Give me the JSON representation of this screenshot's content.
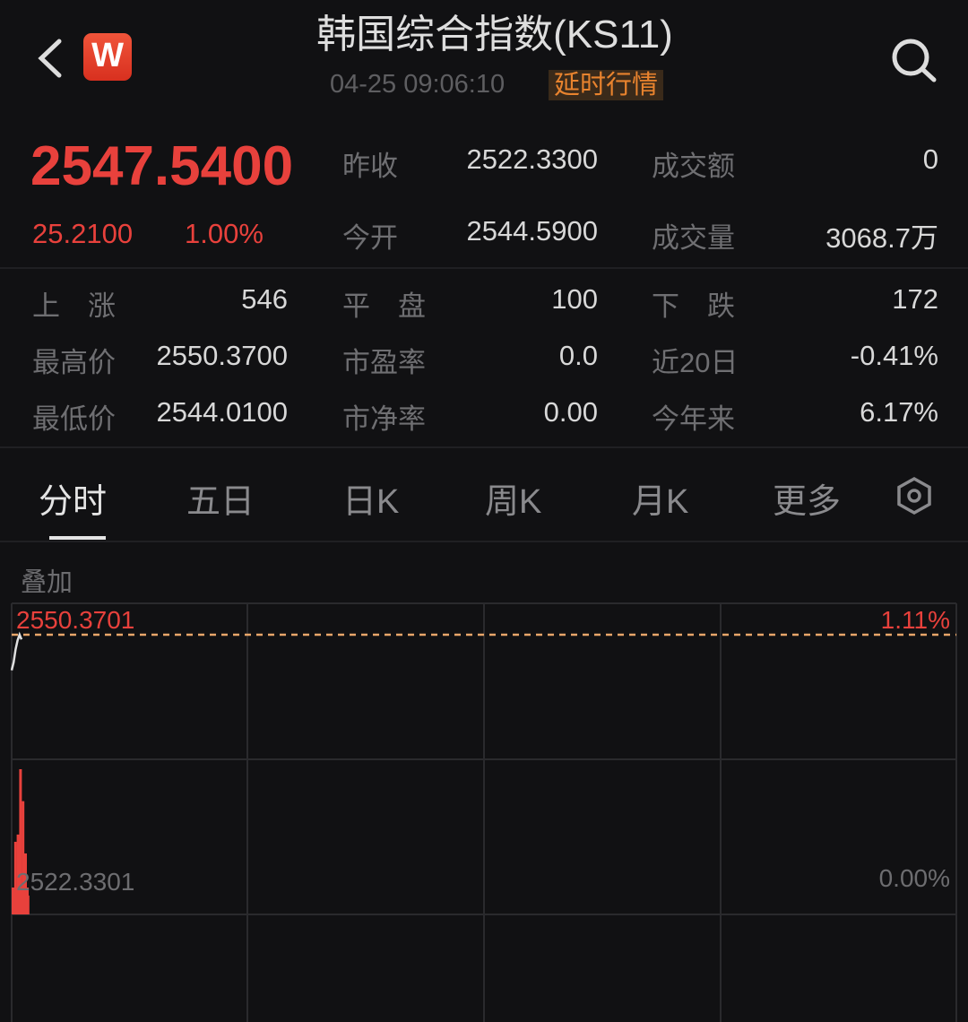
{
  "header": {
    "title": "韩国综合指数(KS11)",
    "datetime": "04-25 09:06:10",
    "badge": "延时行情",
    "logo_letter": "W"
  },
  "quote": {
    "price": "2547.5400",
    "change": "25.2100",
    "change_pct": "1.00%",
    "prev_close_label": "昨收",
    "prev_close": "2522.3300",
    "amount_label": "成交额",
    "amount": "0",
    "open_label": "今开",
    "open": "2544.5900",
    "volume_label": "成交量",
    "volume": "3068.7万"
  },
  "stats": [
    [
      {
        "label": "上　涨",
        "value": "546"
      },
      {
        "label": "平　盘",
        "value": "100"
      },
      {
        "label": "下　跌",
        "value": "172"
      }
    ],
    [
      {
        "label": "最高价",
        "value": "2550.3700"
      },
      {
        "label": "市盈率",
        "value": "0.0"
      },
      {
        "label": "近20日",
        "value": "-0.41%"
      }
    ],
    [
      {
        "label": "最低价",
        "value": "2544.0100"
      },
      {
        "label": "市净率",
        "value": "0.00"
      },
      {
        "label": "今年来",
        "value": "6.17%"
      }
    ]
  ],
  "tabs": [
    {
      "label": "分时",
      "active": true
    },
    {
      "label": "五日"
    },
    {
      "label": "日K"
    },
    {
      "label": "周K"
    },
    {
      "label": "月K"
    },
    {
      "label": "更多"
    }
  ],
  "overlay_label": "叠加",
  "chart": {
    "high_label": "2550.3701",
    "high_pct": "1.11%",
    "base_label": "2522.3301",
    "base_pct": "0.00%",
    "prices": [
      2546.8,
      2547.6,
      2548.9,
      2549.8,
      2550.37,
      2549.9
    ],
    "volumes": [
      0.12,
      0.5,
      0.55,
      1.0,
      0.78,
      0.42,
      0.13
    ],
    "colors": {
      "up": "#e8413c",
      "line": "#e0e0e0",
      "dash": "#e8a66a"
    }
  }
}
